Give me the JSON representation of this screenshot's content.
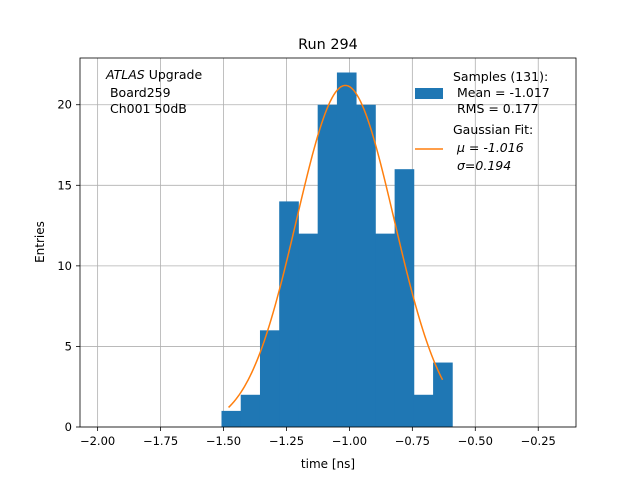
{
  "chart_data": {
    "type": "bar",
    "title": "Run 294",
    "xlabel": "time [ns]",
    "ylabel": "Entries",
    "xlim": [
      -2.07,
      -0.1
    ],
    "ylim": [
      0,
      22.9
    ],
    "grid": true,
    "x_ticks": [
      -2.0,
      -1.75,
      -1.5,
      -1.25,
      -1.0,
      -0.75,
      -0.5,
      -0.25
    ],
    "x_tick_labels": [
      "−2.00",
      "−1.75",
      "−1.50",
      "−1.25",
      "−1.00",
      "−0.75",
      "−0.50",
      "−0.25"
    ],
    "y_ticks": [
      0,
      5,
      10,
      15,
      20
    ],
    "y_tick_labels": [
      "0",
      "5",
      "10",
      "15",
      "20"
    ],
    "bin_edges": [
      -1.508,
      -1.4316,
      -1.3552,
      -1.2788,
      -1.2024,
      -1.126,
      -1.0496,
      -0.9732,
      -0.8968,
      -0.8204,
      -0.744,
      -0.6676,
      -0.5912
    ],
    "bin_width": 0.0764,
    "histogram_values": [
      1,
      2,
      6,
      14,
      12,
      20,
      22,
      20,
      12,
      16,
      2,
      4
    ],
    "fit": {
      "mu": -1.016,
      "sigma": 0.194,
      "amplitude": 21.2,
      "x_range": [
        -1.48,
        -0.63
      ]
    },
    "annotation": {
      "line1_italic": "ATLAS",
      "line1_rest": " Upgrade",
      "line2": " Board259",
      "line3": " Ch001 50dB"
    },
    "legend": {
      "position": "upper-right",
      "hist_label_lines": [
        "Samples (131):",
        " Mean = -1.017",
        " RMS = 0.177"
      ],
      "fit_label_lines": [
        "Gaussian Fit:",
        "μ = -1.016",
        "σ=0.194"
      ]
    },
    "colors": {
      "bars": "#1f77b4",
      "fit_line": "#ff7f0e",
      "grid": "#b0b0b0"
    }
  }
}
